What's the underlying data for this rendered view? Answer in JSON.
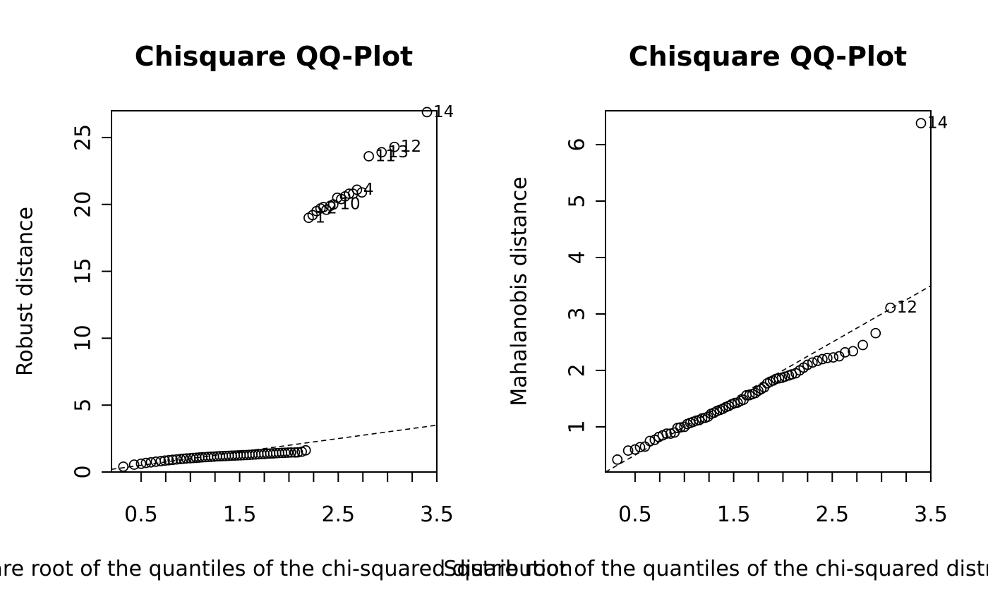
{
  "chart_data": [
    {
      "type": "scatter",
      "title": "Chisquare QQ-Plot",
      "xlabel": "Square root of the quantiles of the chi-squared distribution",
      "ylabel": "Robust distance",
      "xlim": [
        0.2,
        3.5
      ],
      "ylim": [
        0,
        27
      ],
      "xticks": [
        0.5,
        1.5,
        2.5,
        3.5
      ],
      "yticks": [
        0,
        5,
        10,
        15,
        20,
        25
      ],
      "grid": false,
      "legend": "none",
      "reference_line": {
        "style": "dashed",
        "from": [
          0.2,
          0.2
        ],
        "to": [
          3.5,
          3.5
        ]
      },
      "series": [
        {
          "points": [
            [
              0.32,
              0.4
            ],
            [
              0.43,
              0.55
            ],
            [
              0.5,
              0.62
            ],
            [
              0.55,
              0.68
            ],
            [
              0.6,
              0.72
            ],
            [
              0.65,
              0.77
            ],
            [
              0.7,
              0.81
            ],
            [
              0.74,
              0.85
            ],
            [
              0.78,
              0.88
            ],
            [
              0.82,
              0.91
            ],
            [
              0.86,
              0.94
            ],
            [
              0.9,
              0.97
            ],
            [
              0.93,
              0.99
            ],
            [
              0.96,
              1.01
            ],
            [
              1.0,
              1.03
            ],
            [
              1.03,
              1.05
            ],
            [
              1.06,
              1.06
            ],
            [
              1.09,
              1.08
            ],
            [
              1.12,
              1.1
            ],
            [
              1.15,
              1.11
            ],
            [
              1.18,
              1.13
            ],
            [
              1.21,
              1.14
            ],
            [
              1.24,
              1.15
            ],
            [
              1.27,
              1.17
            ],
            [
              1.3,
              1.18
            ],
            [
              1.33,
              1.19
            ],
            [
              1.36,
              1.2
            ],
            [
              1.39,
              1.21
            ],
            [
              1.42,
              1.22
            ],
            [
              1.45,
              1.23
            ],
            [
              1.48,
              1.24
            ],
            [
              1.51,
              1.25
            ],
            [
              1.54,
              1.26
            ],
            [
              1.57,
              1.27
            ],
            [
              1.6,
              1.28
            ],
            [
              1.63,
              1.3
            ],
            [
              1.66,
              1.31
            ],
            [
              1.69,
              1.33
            ],
            [
              1.72,
              1.34
            ],
            [
              1.75,
              1.35
            ],
            [
              1.78,
              1.37
            ],
            [
              1.81,
              1.38
            ],
            [
              1.84,
              1.39
            ],
            [
              1.87,
              1.41
            ],
            [
              1.9,
              1.42
            ],
            [
              1.93,
              1.43
            ],
            [
              1.96,
              1.44
            ],
            [
              1.99,
              1.45
            ],
            [
              2.02,
              1.46
            ],
            [
              2.06,
              1.46
            ],
            [
              2.09,
              1.47
            ],
            [
              2.13,
              1.52
            ],
            [
              2.17,
              1.62
            ],
            [
              2.2,
              19.0
            ],
            [
              2.24,
              19.2
            ],
            [
              2.28,
              19.5
            ],
            [
              2.32,
              19.7
            ],
            [
              2.35,
              19.8
            ],
            [
              2.38,
              19.6
            ],
            [
              2.42,
              19.9
            ],
            [
              2.45,
              20.0
            ],
            [
              2.49,
              20.5
            ],
            [
              2.53,
              20.4
            ],
            [
              2.57,
              20.6
            ],
            [
              2.61,
              20.8
            ],
            [
              2.65,
              20.8
            ],
            [
              2.69,
              21.1
            ],
            [
              2.74,
              20.9
            ],
            [
              2.81,
              23.6
            ],
            [
              2.94,
              23.9
            ],
            [
              3.07,
              24.3
            ],
            [
              3.4,
              26.9
            ]
          ]
        }
      ],
      "annotations": [
        {
          "text": "14",
          "x": 3.4,
          "y": 26.9
        },
        {
          "text": "12",
          "x": 3.07,
          "y": 24.3
        },
        {
          "text": "13",
          "x": 2.94,
          "y": 23.9
        },
        {
          "text": "11",
          "x": 2.81,
          "y": 23.6
        },
        {
          "text": "4",
          "x": 2.69,
          "y": 21.1
        },
        {
          "text": "10",
          "x": 2.45,
          "y": 20.0
        },
        {
          "text": "2",
          "x": 2.32,
          "y": 19.7
        },
        {
          "text": "1",
          "x": 2.2,
          "y": 19.0
        }
      ]
    },
    {
      "type": "scatter",
      "title": "Chisquare QQ-Plot",
      "xlabel": "Square root of the quantiles of the chi-squared distribution",
      "ylabel": "Mahalanobis distance",
      "xlim": [
        0.2,
        3.5
      ],
      "ylim": [
        0.2,
        6.6
      ],
      "xticks": [
        0.5,
        1.5,
        2.5,
        3.5
      ],
      "yticks": [
        1,
        2,
        3,
        4,
        5,
        6
      ],
      "grid": false,
      "legend": "none",
      "reference_line": {
        "style": "dashed",
        "from": [
          0.2,
          0.2
        ],
        "to": [
          3.5,
          3.5
        ]
      },
      "series": [
        {
          "points": [
            [
              0.32,
              0.42
            ],
            [
              0.43,
              0.58
            ],
            [
              0.5,
              0.6
            ],
            [
              0.55,
              0.64
            ],
            [
              0.6,
              0.65
            ],
            [
              0.65,
              0.75
            ],
            [
              0.7,
              0.77
            ],
            [
              0.74,
              0.82
            ],
            [
              0.78,
              0.85
            ],
            [
              0.82,
              0.88
            ],
            [
              0.86,
              0.88
            ],
            [
              0.9,
              0.9
            ],
            [
              0.93,
              0.98
            ],
            [
              0.96,
              0.99
            ],
            [
              1.0,
              1.0
            ],
            [
              1.03,
              1.05
            ],
            [
              1.06,
              1.07
            ],
            [
              1.09,
              1.09
            ],
            [
              1.12,
              1.11
            ],
            [
              1.15,
              1.12
            ],
            [
              1.18,
              1.15
            ],
            [
              1.21,
              1.16
            ],
            [
              1.24,
              1.18
            ],
            [
              1.27,
              1.23
            ],
            [
              1.3,
              1.25
            ],
            [
              1.33,
              1.28
            ],
            [
              1.36,
              1.3
            ],
            [
              1.39,
              1.32
            ],
            [
              1.42,
              1.35
            ],
            [
              1.45,
              1.37
            ],
            [
              1.48,
              1.4
            ],
            [
              1.51,
              1.42
            ],
            [
              1.54,
              1.43
            ],
            [
              1.57,
              1.46
            ],
            [
              1.6,
              1.48
            ],
            [
              1.63,
              1.56
            ],
            [
              1.66,
              1.56
            ],
            [
              1.69,
              1.58
            ],
            [
              1.72,
              1.6
            ],
            [
              1.75,
              1.64
            ],
            [
              1.78,
              1.67
            ],
            [
              1.81,
              1.7
            ],
            [
              1.84,
              1.77
            ],
            [
              1.87,
              1.8
            ],
            [
              1.9,
              1.82
            ],
            [
              1.93,
              1.85
            ],
            [
              1.96,
              1.86
            ],
            [
              1.99,
              1.87
            ],
            [
              2.02,
              1.89
            ],
            [
              2.06,
              1.91
            ],
            [
              2.09,
              1.93
            ],
            [
              2.13,
              1.95
            ],
            [
              2.17,
              2.0
            ],
            [
              2.21,
              2.05
            ],
            [
              2.25,
              2.1
            ],
            [
              2.3,
              2.14
            ],
            [
              2.35,
              2.17
            ],
            [
              2.4,
              2.2
            ],
            [
              2.45,
              2.22
            ],
            [
              2.51,
              2.23
            ],
            [
              2.57,
              2.25
            ],
            [
              2.63,
              2.32
            ],
            [
              2.71,
              2.34
            ],
            [
              2.81,
              2.45
            ],
            [
              2.94,
              2.66
            ],
            [
              3.09,
              3.11
            ],
            [
              3.4,
              6.38
            ]
          ]
        }
      ],
      "annotations": [
        {
          "text": "14",
          "x": 3.4,
          "y": 6.38
        },
        {
          "text": "12",
          "x": 3.09,
          "y": 3.11
        }
      ]
    }
  ]
}
